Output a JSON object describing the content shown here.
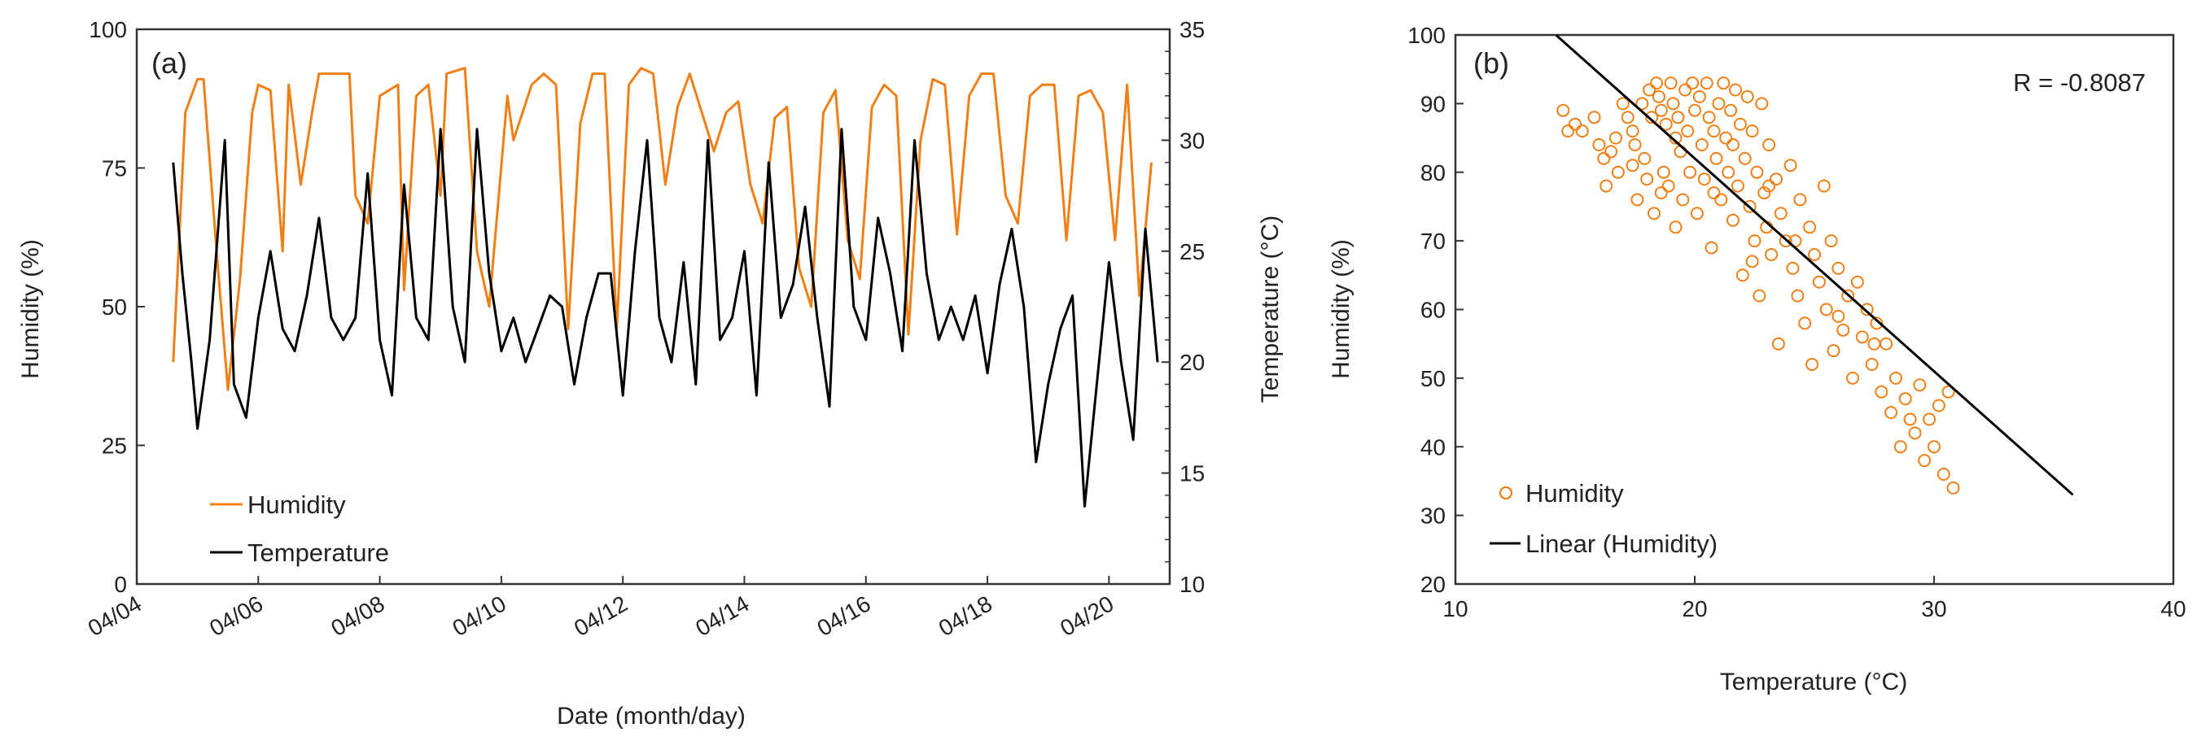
{
  "colors": {
    "humidity": "#f07f16",
    "temperature": "#000000",
    "axis": "#333333"
  },
  "chart_data": [
    {
      "type": "line",
      "panel_label": "(a)",
      "xlabel": "Date (month/day)",
      "ylabel": "Humidity (%)",
      "ylabel_right": "Temperature (°C)",
      "ylim": [
        0,
        100
      ],
      "ylim_right": [
        10,
        35
      ],
      "xlim_days": [
        0,
        17
      ],
      "x_tick_labels": [
        "04/04",
        "04/06",
        "04/08",
        "04/10",
        "04/12",
        "04/14",
        "04/16",
        "04/18",
        "04/20"
      ],
      "y_tick_labels": [
        "0",
        "25",
        "50",
        "75",
        "100"
      ],
      "y_right_tick_labels": [
        "10",
        "15",
        "20",
        "25",
        "30",
        "35"
      ],
      "legend": [
        "Humidity",
        "Temperature"
      ],
      "legend_position": "bottom-left",
      "series": [
        {
          "name": "Humidity",
          "axis": "left",
          "x_days": [
            0.6,
            0.8,
            1.0,
            1.1,
            1.3,
            1.5,
            1.7,
            1.9,
            2.0,
            2.2,
            2.4,
            2.5,
            2.7,
            2.9,
            3.0,
            3.3,
            3.5,
            3.6,
            3.8,
            4.0,
            4.3,
            4.4,
            4.6,
            4.8,
            5.0,
            5.1,
            5.4,
            5.6,
            5.8,
            6.1,
            6.2,
            6.5,
            6.7,
            6.9,
            7.1,
            7.3,
            7.5,
            7.7,
            7.9,
            8.1,
            8.3,
            8.5,
            8.7,
            8.9,
            9.1,
            9.3,
            9.5,
            9.7,
            9.9,
            10.1,
            10.3,
            10.5,
            10.7,
            10.9,
            11.1,
            11.3,
            11.5,
            11.7,
            11.9,
            12.1,
            12.3,
            12.5,
            12.7,
            12.9,
            13.1,
            13.3,
            13.5,
            13.7,
            13.9,
            14.1,
            14.3,
            14.5,
            14.7,
            14.9,
            15.1,
            15.3,
            15.5,
            15.7,
            15.9,
            16.1,
            16.3,
            16.5,
            16.7
          ],
          "values": [
            40,
            85,
            91,
            91,
            62,
            35,
            55,
            85,
            90,
            89,
            60,
            90,
            72,
            86,
            92,
            92,
            92,
            70,
            65,
            88,
            90,
            53,
            88,
            90,
            70,
            92,
            93,
            60,
            50,
            88,
            80,
            90,
            92,
            90,
            46,
            83,
            92,
            92,
            46,
            90,
            93,
            92,
            72,
            86,
            92,
            85,
            78,
            85,
            87,
            72,
            65,
            84,
            86,
            57,
            50,
            85,
            89,
            62,
            55,
            86,
            90,
            88,
            45,
            80,
            91,
            90,
            63,
            88,
            92,
            92,
            70,
            65,
            88,
            90,
            90,
            62,
            88,
            89,
            85,
            62,
            90,
            52,
            76
          ]
        },
        {
          "name": "Temperature",
          "axis": "right",
          "x_days": [
            0.6,
            0.75,
            0.9,
            1.0,
            1.2,
            1.45,
            1.6,
            1.8,
            2.0,
            2.2,
            2.4,
            2.6,
            2.8,
            3.0,
            3.2,
            3.4,
            3.6,
            3.8,
            4.0,
            4.2,
            4.4,
            4.6,
            4.8,
            5.0,
            5.2,
            5.4,
            5.6,
            5.8,
            6.0,
            6.2,
            6.4,
            6.6,
            6.8,
            7.0,
            7.2,
            7.4,
            7.6,
            7.8,
            8.0,
            8.2,
            8.4,
            8.6,
            8.8,
            9.0,
            9.2,
            9.4,
            9.6,
            9.8,
            10.0,
            10.2,
            10.4,
            10.6,
            10.8,
            11.0,
            11.2,
            11.4,
            11.6,
            11.8,
            12.0,
            12.2,
            12.4,
            12.6,
            12.8,
            13.0,
            13.2,
            13.4,
            13.6,
            13.8,
            14.0,
            14.2,
            14.4,
            14.6,
            14.8,
            15.0,
            15.2,
            15.4,
            15.6,
            15.8,
            16.0,
            16.2,
            16.4,
            16.6,
            16.8
          ],
          "values": [
            29,
            24,
            20,
            17,
            21,
            30,
            19,
            17.5,
            22,
            25,
            21.5,
            20.5,
            23,
            26.5,
            22,
            21,
            22,
            28.5,
            21,
            18.5,
            28,
            22,
            21,
            30.5,
            22.5,
            20,
            30.5,
            24,
            20.5,
            22,
            20,
            21.5,
            23,
            22.5,
            19,
            22,
            24,
            24,
            18.5,
            25,
            30,
            22,
            20,
            24.5,
            19,
            30,
            21,
            22,
            25,
            18.5,
            29,
            22,
            23.5,
            27,
            22,
            18,
            30.5,
            22.5,
            21,
            26.5,
            24,
            20.5,
            30,
            24,
            21,
            22.5,
            21,
            23,
            19.5,
            23.5,
            26,
            22.5,
            15.5,
            19,
            21.5,
            23,
            13.5,
            19,
            24.5,
            20,
            16.5,
            26,
            20
          ]
        }
      ]
    },
    {
      "type": "scatter",
      "panel_label": "(b)",
      "xlabel": "Temperature (°C)",
      "ylabel": "Humidity (%)",
      "xlim": [
        10,
        40
      ],
      "ylim": [
        20,
        100
      ],
      "x_tick_labels": [
        "10",
        "20",
        "30",
        "40"
      ],
      "y_tick_labels": [
        "20",
        "30",
        "40",
        "50",
        "60",
        "70",
        "80",
        "90",
        "100"
      ],
      "annotation": "R = -0.8087",
      "legend": [
        "Humidity",
        "Linear (Humidity)"
      ],
      "legend_position": "bottom-left",
      "trendline": {
        "x": [
          14.2,
          35.8
        ],
        "y": [
          100,
          33
        ]
      },
      "series": [
        {
          "name": "Humidity",
          "points": [
            [
              14.5,
              89
            ],
            [
              14.7,
              86
            ],
            [
              15.0,
              87
            ],
            [
              15.3,
              86
            ],
            [
              15.8,
              88
            ],
            [
              16.0,
              84
            ],
            [
              16.2,
              82
            ],
            [
              16.3,
              78
            ],
            [
              16.5,
              83
            ],
            [
              16.7,
              85
            ],
            [
              16.8,
              80
            ],
            [
              17.0,
              90
            ],
            [
              17.2,
              88
            ],
            [
              17.4,
              86
            ],
            [
              17.5,
              84
            ],
            [
              17.6,
              76
            ],
            [
              17.8,
              90
            ],
            [
              17.9,
              82
            ],
            [
              18.0,
              79
            ],
            [
              18.1,
              92
            ],
            [
              18.2,
              88
            ],
            [
              18.3,
              74
            ],
            [
              18.4,
              93
            ],
            [
              18.5,
              91
            ],
            [
              18.6,
              89
            ],
            [
              18.7,
              80
            ],
            [
              18.8,
              87
            ],
            [
              18.9,
              78
            ],
            [
              19.0,
              93
            ],
            [
              19.1,
              90
            ],
            [
              19.2,
              72
            ],
            [
              19.3,
              88
            ],
            [
              19.4,
              83
            ],
            [
              19.5,
              76
            ],
            [
              19.6,
              92
            ],
            [
              19.7,
              86
            ],
            [
              19.8,
              80
            ],
            [
              19.9,
              93
            ],
            [
              20.0,
              89
            ],
            [
              20.1,
              74
            ],
            [
              20.2,
              91
            ],
            [
              20.3,
              84
            ],
            [
              20.4,
              79
            ],
            [
              20.5,
              93
            ],
            [
              20.6,
              88
            ],
            [
              20.7,
              69
            ],
            [
              20.8,
              86
            ],
            [
              20.9,
              82
            ],
            [
              21.0,
              90
            ],
            [
              21.1,
              76
            ],
            [
              21.2,
              93
            ],
            [
              21.3,
              85
            ],
            [
              21.4,
              80
            ],
            [
              21.5,
              89
            ],
            [
              21.6,
              73
            ],
            [
              21.7,
              92
            ],
            [
              21.8,
              78
            ],
            [
              21.9,
              87
            ],
            [
              22.0,
              65
            ],
            [
              22.1,
              82
            ],
            [
              22.2,
              91
            ],
            [
              22.3,
              75
            ],
            [
              22.4,
              86
            ],
            [
              22.5,
              70
            ],
            [
              22.6,
              80
            ],
            [
              22.7,
              62
            ],
            [
              22.8,
              90
            ],
            [
              22.9,
              77
            ],
            [
              23.0,
              72
            ],
            [
              23.1,
              84
            ],
            [
              23.2,
              68
            ],
            [
              23.4,
              79
            ],
            [
              23.5,
              55
            ],
            [
              23.6,
              74
            ],
            [
              23.8,
              70
            ],
            [
              24.0,
              81
            ],
            [
              24.1,
              66
            ],
            [
              24.3,
              62
            ],
            [
              24.4,
              76
            ],
            [
              24.6,
              58
            ],
            [
              24.8,
              72
            ],
            [
              24.9,
              52
            ],
            [
              25.0,
              68
            ],
            [
              25.2,
              64
            ],
            [
              25.4,
              78
            ],
            [
              25.5,
              60
            ],
            [
              25.7,
              70
            ],
            [
              25.8,
              54
            ],
            [
              26.0,
              66
            ],
            [
              26.2,
              57
            ],
            [
              26.4,
              62
            ],
            [
              26.6,
              50
            ],
            [
              26.8,
              64
            ],
            [
              27.0,
              56
            ],
            [
              27.2,
              60
            ],
            [
              27.4,
              52
            ],
            [
              27.6,
              58
            ],
            [
              27.8,
              48
            ],
            [
              28.0,
              55
            ],
            [
              28.2,
              45
            ],
            [
              28.4,
              50
            ],
            [
              28.6,
              40
            ],
            [
              28.8,
              47
            ],
            [
              29.0,
              44
            ],
            [
              29.2,
              42
            ],
            [
              29.4,
              49
            ],
            [
              29.6,
              38
            ],
            [
              29.8,
              44
            ],
            [
              30.0,
              40
            ],
            [
              30.2,
              46
            ],
            [
              30.4,
              36
            ],
            [
              30.6,
              48
            ],
            [
              30.8,
              34
            ],
            [
              19.2,
              85
            ],
            [
              20.8,
              77
            ],
            [
              22.4,
              67
            ],
            [
              24.2,
              70
            ],
            [
              26.0,
              59
            ],
            [
              27.5,
              55
            ],
            [
              21.6,
              84
            ],
            [
              23.1,
              78
            ],
            [
              18.6,
              77
            ],
            [
              17.4,
              81
            ]
          ]
        }
      ]
    }
  ]
}
